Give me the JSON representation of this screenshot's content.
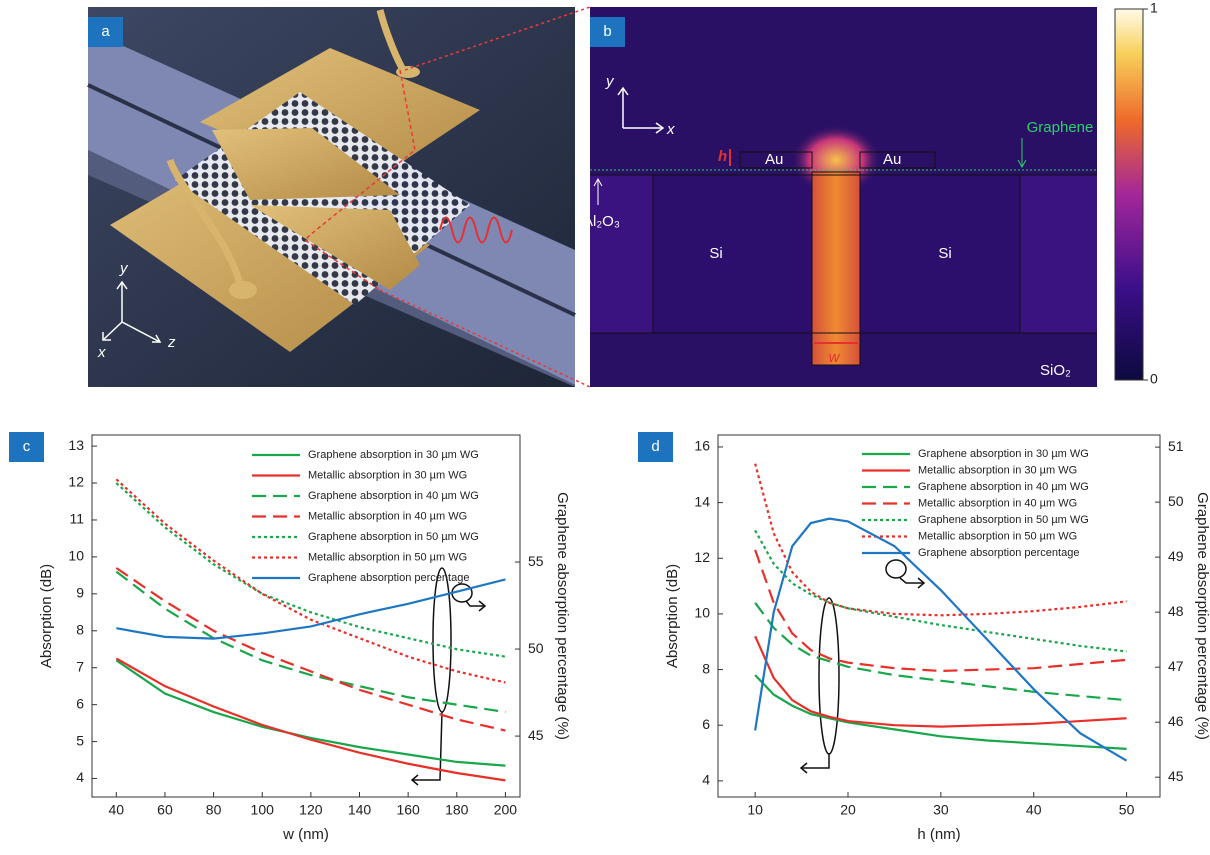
{
  "panels": {
    "a": {
      "label": "a",
      "axis_y": "y",
      "axis_x": "x",
      "axis_z": "z"
    },
    "b": {
      "label": "b",
      "axis_y": "y",
      "axis_x": "x",
      "graphene": "Graphene",
      "h": "h",
      "au_left": "Au",
      "au_right": "Au",
      "al2o3": "Al₂O₃",
      "si_left": "Si",
      "si_right": "Si",
      "sio2": "SiO₂",
      "w": "w",
      "colorbar": {
        "lim": [
          0,
          1
        ],
        "ticks": [
          0,
          1
        ]
      }
    }
  },
  "chart_data": [
    {
      "type": "line",
      "panel_label": "c",
      "xlabel": "w (nm)",
      "ylabel": "Absorption (dB)",
      "y2label": "Graphene absorption percentage (%)",
      "x": [
        40,
        60,
        80,
        100,
        120,
        140,
        160,
        180,
        200
      ],
      "xlim": [
        30,
        206
      ],
      "xticks": [
        40,
        60,
        80,
        100,
        120,
        140,
        160,
        180,
        200
      ],
      "ylim": [
        3.5,
        13.3
      ],
      "yticks": [
        4,
        5,
        6,
        7,
        8,
        9,
        10,
        11,
        12,
        13
      ],
      "y2lim": [
        41.5,
        62.3
      ],
      "y2ticks": [
        45,
        50,
        55
      ],
      "legend": "upper right",
      "series": [
        {
          "name": "Graphene absorption in 30 µm WG",
          "color": "#1aa64a",
          "line_style": "solid",
          "values": [
            7.2,
            6.3,
            5.8,
            5.4,
            5.1,
            4.85,
            4.65,
            4.45,
            4.35
          ]
        },
        {
          "name": "Metallic absorption in 30 µm WG",
          "color": "#e8302a",
          "line_style": "solid",
          "values": [
            7.25,
            6.5,
            5.95,
            5.45,
            5.05,
            4.7,
            4.4,
            4.15,
            3.95
          ]
        },
        {
          "name": "Graphene absorption in 40 µm WG",
          "color": "#1aa64a",
          "line_style": "dashed",
          "values": [
            9.6,
            8.6,
            7.8,
            7.2,
            6.8,
            6.5,
            6.2,
            6.0,
            5.8
          ]
        },
        {
          "name": "Metallic absorption in 40 µm WG",
          "color": "#e8302a",
          "line_style": "dashed",
          "values": [
            9.7,
            8.8,
            8.0,
            7.4,
            6.9,
            6.4,
            6.0,
            5.6,
            5.3
          ]
        },
        {
          "name": "Graphene absorption in 50 µm WG",
          "color": "#1aa64a",
          "line_style": "dotted",
          "values": [
            12.0,
            10.8,
            9.8,
            9.0,
            8.5,
            8.1,
            7.8,
            7.5,
            7.3
          ]
        },
        {
          "name": "Metallic absorption in 50 µm WG",
          "color": "#e8302a",
          "line_style": "dotted",
          "values": [
            12.1,
            10.9,
            9.9,
            9.0,
            8.3,
            7.8,
            7.3,
            6.9,
            6.6
          ]
        },
        {
          "name": "Graphene absorption percentage",
          "color": "#1f77c4",
          "line_style": "solid",
          "axis": "y2",
          "values": [
            51.2,
            50.7,
            50.6,
            50.9,
            51.3,
            52.0,
            52.6,
            53.3,
            54.0
          ]
        }
      ]
    },
    {
      "type": "line",
      "panel_label": "d",
      "xlabel": "h (nm)",
      "ylabel": "Absorption (dB)",
      "y2label": "Graphene absorption percentage (%)",
      "x": [
        10,
        12,
        14,
        16,
        18,
        20,
        25,
        30,
        35,
        40,
        45,
        50
      ],
      "xlim": [
        6,
        53.6
      ],
      "xticks": [
        10,
        20,
        30,
        40,
        50
      ],
      "ylim": [
        3.42,
        16.43
      ],
      "yticks": [
        4,
        6,
        8,
        10,
        12,
        14,
        16
      ],
      "y2lim": [
        44.64,
        51.22
      ],
      "y2ticks": [
        45,
        46,
        47,
        48,
        49,
        50,
        51
      ],
      "legend": "upper right",
      "series": [
        {
          "name": "Graphene absorption in 30 µm WG",
          "color": "#1aa64a",
          "line_style": "solid",
          "values": [
            7.8,
            7.1,
            6.7,
            6.4,
            6.25,
            6.1,
            5.85,
            5.6,
            5.45,
            5.35,
            5.25,
            5.15
          ]
        },
        {
          "name": "Metallic absorption in 30 µm WG",
          "color": "#e8302a",
          "line_style": "solid",
          "values": [
            9.2,
            7.7,
            6.9,
            6.5,
            6.3,
            6.15,
            6.0,
            5.95,
            6.0,
            6.05,
            6.15,
            6.25
          ]
        },
        {
          "name": "Graphene absorption in 40 µm WG",
          "color": "#1aa64a",
          "line_style": "dashed",
          "values": [
            10.4,
            9.5,
            8.9,
            8.5,
            8.3,
            8.1,
            7.8,
            7.6,
            7.4,
            7.2,
            7.05,
            6.9
          ]
        },
        {
          "name": "Metallic absorption in 40 µm WG",
          "color": "#e8302a",
          "line_style": "dashed",
          "values": [
            12.3,
            10.4,
            9.3,
            8.7,
            8.4,
            8.25,
            8.05,
            7.95,
            8.0,
            8.05,
            8.2,
            8.35
          ]
        },
        {
          "name": "Graphene absorption in 50 µm WG",
          "color": "#1aa64a",
          "line_style": "dotted",
          "values": [
            13.0,
            11.8,
            11.1,
            10.7,
            10.4,
            10.2,
            9.9,
            9.6,
            9.35,
            9.1,
            8.85,
            8.65
          ]
        },
        {
          "name": "Metallic absorption in 50 µm WG",
          "color": "#e8302a",
          "line_style": "dotted",
          "values": [
            15.4,
            12.9,
            11.5,
            10.8,
            10.4,
            10.2,
            10.0,
            9.95,
            10.0,
            10.1,
            10.25,
            10.45
          ]
        },
        {
          "name": "Graphene absorption percentage",
          "color": "#1f77c4",
          "line_style": "solid",
          "axis": "y2",
          "values": [
            45.85,
            48.0,
            49.2,
            49.62,
            49.7,
            49.65,
            49.2,
            48.4,
            47.5,
            46.6,
            45.8,
            45.3
          ]
        }
      ]
    }
  ]
}
